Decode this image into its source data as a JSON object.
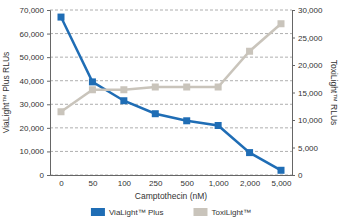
{
  "chart_data": {
    "type": "line",
    "xlabel": "Camptothecin (nM)",
    "ylabel": "ViaLight™ Plus RLUs",
    "y2label": "ToxiLight™ RLUs",
    "categories": [
      "0",
      "50",
      "100",
      "250",
      "500",
      "1,000",
      "2,000",
      "5,000"
    ],
    "series": [
      {
        "name": "ViaLight™ Plus",
        "color": "#1f6db5",
        "marker": "square",
        "values": [
          67000,
          39500,
          31500,
          26000,
          23000,
          21000,
          9500,
          2000
        ]
      },
      {
        "name": "ToxiLight™",
        "color": "#c9c4bb",
        "marker": "square",
        "axis": "y2",
        "values": [
          11500,
          15500,
          15500,
          16000,
          16000,
          16000,
          22500,
          27500
        ]
      }
    ],
    "ylim": [
      0,
      70000
    ],
    "yticks": [
      0,
      {
        "value": 10000,
        "label": "10,000"
      },
      {
        "value": 20000,
        "label": "20,000"
      },
      {
        "value": 30000,
        "label": "30,000"
      },
      {
        "value": 40000,
        "label": "40,000"
      },
      {
        "value": 50000,
        "label": "50,000"
      },
      {
        "value": 60000,
        "label": "60,000"
      },
      {
        "value": 70000,
        "label": "70,000"
      }
    ],
    "y2lim": [
      0,
      30000
    ],
    "y2ticks": [
      0,
      {
        "value": 5000,
        "label": "5,000"
      },
      {
        "value": 10000,
        "label": "10,000"
      },
      {
        "value": 15000,
        "label": "15,000"
      },
      {
        "value": 20000,
        "label": "20,000"
      },
      {
        "value": 25000,
        "label": "25,000"
      },
      {
        "value": 30000,
        "label": "30,000"
      }
    ],
    "grid": true,
    "legend": "bottom"
  }
}
